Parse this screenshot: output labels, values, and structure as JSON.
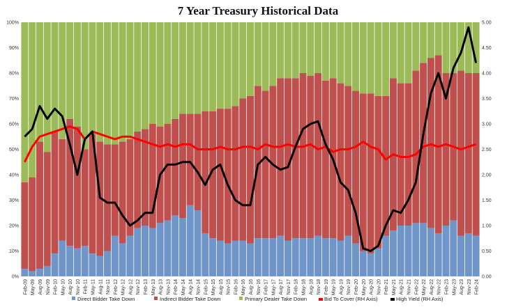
{
  "chart_data": {
    "type": "bar",
    "title": "7 Year Treasury Historical Data",
    "left_axis": {
      "min": 0,
      "max": 100,
      "ticks": [
        "0%",
        "10%",
        "20%",
        "30%",
        "40%",
        "50%",
        "60%",
        "70%",
        "80%",
        "90%",
        "100%"
      ]
    },
    "right_axis": {
      "min": 0,
      "max": 5,
      "ticks": [
        "0.00",
        "0.50",
        "1.00",
        "1.50",
        "2.00",
        "2.50",
        "3.00",
        "3.50",
        "4.00",
        "4.50",
        "5.00"
      ]
    },
    "x_tick_labels": [
      "Feb-09",
      "May-09",
      "Aug-09",
      "Nov-09",
      "Feb-10",
      "May-10",
      "Aug-10",
      "Nov-10",
      "Feb-11",
      "May-11",
      "Aug-11",
      "Nov-11",
      "Feb-12",
      "May-12",
      "Aug-12",
      "Nov-12",
      "Feb-13",
      "May-13",
      "Aug-13",
      "Nov-13",
      "Feb-14",
      "May-14",
      "Aug-14",
      "Nov-14",
      "Feb-15",
      "May-15",
      "Aug-15",
      "Nov-15",
      "Feb-16",
      "May-16",
      "Aug-16",
      "Nov-16",
      "Feb-17",
      "May-17",
      "Aug-17",
      "Nov-17",
      "Feb-18",
      "May-18",
      "Aug-18",
      "Nov-18",
      "Feb-19",
      "May-19",
      "Aug-19",
      "Nov-19",
      "Feb-20",
      "May-20",
      "Aug-20",
      "Nov-20",
      "Feb-21",
      "May-21",
      "Aug-21",
      "Nov-21",
      "Feb-22",
      "May-22",
      "Aug-22",
      "Nov-22",
      "Feb-23",
      "May-23",
      "Aug-23",
      "Nov-23",
      "Feb-24"
    ],
    "series": [
      {
        "name": "Direct Bidder Take Down",
        "color": "#6f95c9",
        "axis": "left",
        "kind": "stacked-bar",
        "values": [
          3,
          2,
          3,
          4,
          9,
          14,
          12,
          11,
          12,
          9,
          8,
          10,
          16,
          13,
          16,
          19,
          20,
          19,
          21,
          22,
          24,
          23,
          28,
          26,
          17,
          15,
          14,
          13,
          14,
          14,
          13,
          15,
          15,
          15,
          16,
          14,
          15,
          15,
          15,
          16,
          15,
          15,
          14,
          16,
          13,
          10,
          9,
          11,
          16,
          18,
          20,
          20,
          21,
          21,
          19,
          17,
          20,
          22,
          16,
          17,
          16
        ]
      },
      {
        "name": "Indirect Bidder Take Down",
        "color": "#c0504d",
        "axis": "left",
        "kind": "stacked-bar",
        "values": [
          34,
          37,
          50,
          45,
          48,
          40,
          50,
          48,
          38,
          47,
          45,
          42,
          36,
          40,
          38,
          38,
          38,
          41,
          38,
          38,
          38,
          41,
          36,
          38,
          48,
          50,
          52,
          53,
          53,
          56,
          58,
          60,
          58,
          60,
          62,
          64,
          63,
          65,
          64,
          64,
          62,
          63,
          62,
          59,
          60,
          62,
          63,
          60,
          55,
          60,
          56,
          56,
          60,
          63,
          67,
          70,
          60,
          58,
          65,
          63,
          64
        ]
      },
      {
        "name": "Primary Dealer Take Down",
        "color": "#9bbb59",
        "axis": "left",
        "kind": "stacked-bar",
        "values": [
          63,
          61,
          47,
          51,
          43,
          46,
          38,
          41,
          50,
          44,
          47,
          48,
          48,
          47,
          46,
          43,
          42,
          40,
          41,
          40,
          38,
          36,
          36,
          36,
          35,
          35,
          34,
          34,
          33,
          30,
          29,
          25,
          27,
          25,
          22,
          22,
          22,
          20,
          21,
          20,
          23,
          22,
          24,
          25,
          27,
          28,
          28,
          29,
          29,
          22,
          24,
          24,
          19,
          16,
          14,
          13,
          20,
          20,
          19,
          20,
          20
        ]
      },
      {
        "name": "Bid To Cover (RH Axis)",
        "color": "#ff0000",
        "axis": "right",
        "kind": "line",
        "values": [
          2.25,
          2.55,
          2.75,
          2.8,
          2.85,
          2.9,
          2.95,
          2.9,
          2.7,
          2.85,
          2.8,
          2.75,
          2.7,
          2.75,
          2.75,
          2.7,
          2.65,
          2.6,
          2.55,
          2.6,
          2.55,
          2.6,
          2.6,
          2.5,
          2.5,
          2.5,
          2.55,
          2.5,
          2.5,
          2.55,
          2.55,
          2.5,
          2.6,
          2.55,
          2.55,
          2.6,
          2.55,
          2.55,
          2.6,
          2.5,
          2.55,
          2.45,
          2.5,
          2.5,
          2.55,
          2.65,
          2.55,
          2.5,
          2.3,
          2.4,
          2.35,
          2.35,
          2.4,
          2.55,
          2.6,
          2.55,
          2.6,
          2.55,
          2.5,
          2.55,
          2.6
        ]
      },
      {
        "name": "High Yield (RH Axis)",
        "color": "#000000",
        "axis": "right",
        "kind": "line",
        "values": [
          2.75,
          2.9,
          3.35,
          3.1,
          3.3,
          3.15,
          2.6,
          2.0,
          2.7,
          2.85,
          1.55,
          1.45,
          1.45,
          1.2,
          1.0,
          1.1,
          1.25,
          1.25,
          2.0,
          2.2,
          2.2,
          2.25,
          2.25,
          2.05,
          1.8,
          2.1,
          2.2,
          1.8,
          1.5,
          1.4,
          1.4,
          2.2,
          2.35,
          2.2,
          2.1,
          2.15,
          2.55,
          2.9,
          3.0,
          3.05,
          2.6,
          2.3,
          1.85,
          1.7,
          1.25,
          0.55,
          0.5,
          0.6,
          1.0,
          1.3,
          1.25,
          1.5,
          1.85,
          2.8,
          3.6,
          4.0,
          3.5,
          4.1,
          4.4,
          4.9,
          4.2
        ]
      }
    ]
  }
}
